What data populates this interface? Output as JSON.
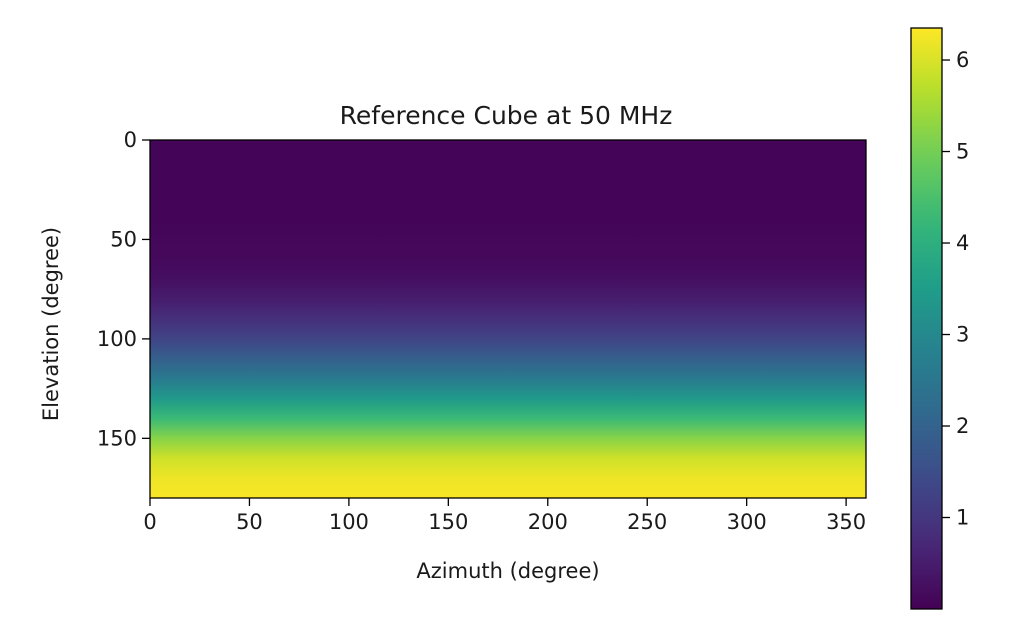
{
  "chart_data": {
    "type": "heatmap",
    "title": "Reference Cube at 50 MHz",
    "xlabel": "Azimuth (degree)",
    "ylabel": "Elevation (degree)",
    "xlim": [
      0,
      360
    ],
    "ylim": [
      180,
      0
    ],
    "x_ticks": [
      "0",
      "50",
      "100",
      "150",
      "200",
      "250",
      "300",
      "350"
    ],
    "y_ticks": [
      "0",
      "50",
      "100",
      "150"
    ],
    "colormap": "viridis",
    "grid": false,
    "colorbar": {
      "range": [
        0,
        6.35
      ],
      "ticks": [
        "1",
        "2",
        "3",
        "4",
        "5",
        "6"
      ]
    },
    "profile_along_elevation": {
      "elevation": [
        0,
        20,
        40,
        60,
        70,
        80,
        90,
        100,
        110,
        120,
        130,
        140,
        150,
        160,
        170,
        180
      ],
      "value": [
        0.05,
        0.06,
        0.08,
        0.15,
        0.25,
        0.5,
        0.85,
        1.3,
        1.9,
        2.6,
        3.4,
        4.3,
        5.2,
        5.9,
        6.2,
        6.3
      ]
    },
    "varies_with_azimuth": false
  }
}
